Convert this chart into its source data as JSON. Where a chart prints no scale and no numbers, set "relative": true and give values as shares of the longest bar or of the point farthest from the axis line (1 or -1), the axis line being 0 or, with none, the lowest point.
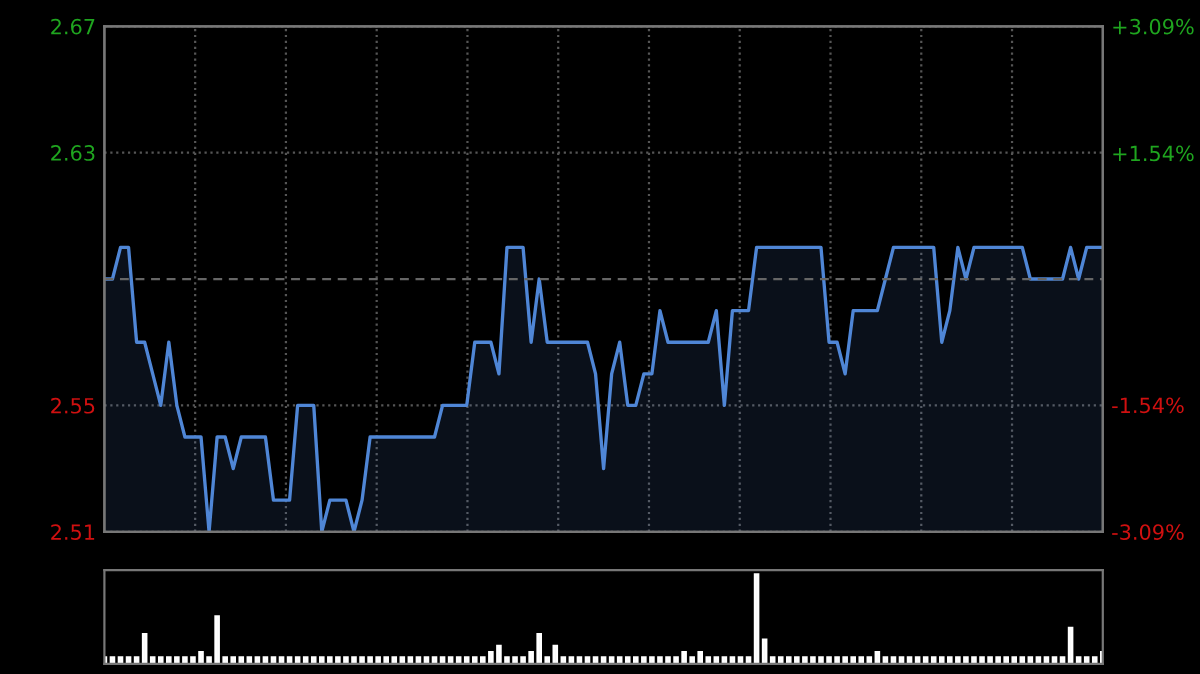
{
  "chart_data": [
    {
      "type": "area",
      "categories": [
        null,
        null,
        null,
        null,
        null,
        null,
        null,
        null,
        null,
        null,
        null,
        null,
        null,
        null,
        null,
        null,
        null,
        null,
        null,
        null,
        null,
        null,
        null,
        null,
        null,
        null,
        null,
        null,
        null,
        null,
        null,
        null,
        null,
        null,
        null,
        null,
        null,
        null,
        null,
        null,
        null,
        null,
        null,
        null,
        null,
        null,
        null,
        null,
        null,
        null,
        null,
        null,
        null,
        null,
        null,
        null,
        null,
        null,
        null,
        null,
        null,
        null,
        null,
        null,
        null,
        null,
        null,
        null,
        null,
        null,
        null,
        null,
        null,
        null,
        null,
        null,
        null,
        null,
        null,
        null,
        null,
        null,
        null,
        null,
        null,
        null,
        null,
        null,
        null,
        null,
        null,
        null,
        null,
        null,
        null,
        null,
        null,
        null,
        null,
        null,
        null,
        null,
        null,
        null,
        null,
        null,
        null,
        null,
        null,
        null,
        null,
        null,
        null,
        null,
        null,
        null,
        null,
        null,
        null,
        null,
        null,
        null,
        null,
        null,
        null
      ],
      "series": [
        {
          "color": "#4f86d6",
          "values": [
            2.59,
            2.59,
            2.6,
            2.6,
            2.57,
            2.57,
            2.56,
            2.55,
            2.57,
            2.55,
            2.54,
            2.54,
            2.54,
            2.51,
            2.54,
            2.54,
            2.53,
            2.54,
            2.54,
            2.54,
            2.54,
            2.52,
            2.52,
            2.52,
            2.55,
            2.55,
            2.55,
            2.51,
            2.52,
            2.52,
            2.52,
            2.51,
            2.52,
            2.54,
            2.54,
            2.54,
            2.54,
            2.54,
            2.54,
            2.54,
            2.54,
            2.54,
            2.55,
            2.55,
            2.55,
            2.55,
            2.57,
            2.57,
            2.57,
            2.56,
            2.6,
            2.6,
            2.6,
            2.57,
            2.59,
            2.57,
            2.57,
            2.57,
            2.57,
            2.57,
            2.57,
            2.56,
            2.53,
            2.56,
            2.57,
            2.55,
            2.55,
            2.56,
            2.56,
            2.58,
            2.57,
            2.57,
            2.57,
            2.57,
            2.57,
            2.57,
            2.58,
            2.55,
            2.58,
            2.58,
            2.58,
            2.6,
            2.6,
            2.6,
            2.6,
            2.6,
            2.6,
            2.6,
            2.6,
            2.6,
            2.57,
            2.57,
            2.56,
            2.58,
            2.58,
            2.58,
            2.58,
            2.59,
            2.6,
            2.6,
            2.6,
            2.6,
            2.6,
            2.6,
            2.57,
            2.58,
            2.6,
            2.59,
            2.6,
            2.6,
            2.6,
            2.6,
            2.6,
            2.6,
            2.6,
            2.59,
            2.59,
            2.59,
            2.59,
            2.59,
            2.6,
            2.59,
            2.6,
            2.6,
            2.6
          ]
        }
      ],
      "ylim": [
        2.51,
        2.67
      ],
      "yticks": [
        2.51,
        2.55,
        2.63,
        2.67
      ],
      "y2lim": [
        -3.09,
        3.09
      ],
      "y2ticks": [
        {
          "value": -3.09,
          "label": "-3.09%"
        },
        {
          "value": -1.54,
          "label": "-1.54%"
        },
        {
          "value": 1.54,
          "label": "+1.54%"
        },
        {
          "value": 3.09,
          "label": "+3.09%"
        }
      ],
      "ref_lines": [
        {
          "axis": "y",
          "value": 2.59,
          "color": "#666666",
          "line_style": "dashed"
        }
      ],
      "grid": true
    },
    {
      "type": "bar",
      "relative": true,
      "categories": [
        null,
        null,
        null,
        null,
        null,
        null,
        null,
        null,
        null,
        null,
        null,
        null,
        null,
        null,
        null,
        null,
        null,
        null,
        null,
        null,
        null,
        null,
        null,
        null,
        null,
        null,
        null,
        null,
        null,
        null,
        null,
        null,
        null,
        null,
        null,
        null,
        null,
        null,
        null,
        null,
        null,
        null,
        null,
        null,
        null,
        null,
        null,
        null,
        null,
        null,
        null,
        null,
        null,
        null,
        null,
        null,
        null,
        null,
        null,
        null,
        null,
        null,
        null,
        null,
        null,
        null,
        null,
        null,
        null,
        null,
        null,
        null,
        null,
        null,
        null,
        null,
        null,
        null,
        null,
        null,
        null,
        null,
        null,
        null,
        null,
        null,
        null,
        null,
        null,
        null,
        null,
        null,
        null,
        null,
        null,
        null,
        null,
        null,
        null,
        null,
        null,
        null,
        null,
        null,
        null,
        null,
        null,
        null,
        null,
        null,
        null,
        null,
        null,
        null,
        null,
        null,
        null,
        null,
        null,
        null,
        null,
        null,
        null,
        null,
        null
      ],
      "series": [
        {
          "color": "#888888",
          "values": [
            0.07,
            0.07,
            0.07,
            0.07,
            0.07,
            0.33,
            0.07,
            0.07,
            0.07,
            0.07,
            0.07,
            0.07,
            0.13,
            0.07,
            0.53,
            0.07,
            0.07,
            0.07,
            0.07,
            0.07,
            0.07,
            0.07,
            0.07,
            0.07,
            0.07,
            0.07,
            0.07,
            0.07,
            0.07,
            0.07,
            0.07,
            0.07,
            0.07,
            0.07,
            0.07,
            0.07,
            0.07,
            0.07,
            0.07,
            0.07,
            0.07,
            0.07,
            0.07,
            0.07,
            0.07,
            0.07,
            0.07,
            0.07,
            0.13,
            0.2,
            0.07,
            0.07,
            0.07,
            0.13,
            0.33,
            0.07,
            0.2,
            0.07,
            0.07,
            0.07,
            0.07,
            0.07,
            0.07,
            0.07,
            0.07,
            0.07,
            0.07,
            0.07,
            0.07,
            0.07,
            0.07,
            0.07,
            0.13,
            0.07,
            0.13,
            0.07,
            0.07,
            0.07,
            0.07,
            0.07,
            0.07,
            1.0,
            0.27,
            0.07,
            0.07,
            0.07,
            0.07,
            0.07,
            0.07,
            0.07,
            0.07,
            0.07,
            0.07,
            0.07,
            0.07,
            0.07,
            0.13,
            0.07,
            0.07,
            0.07,
            0.07,
            0.07,
            0.07,
            0.07,
            0.07,
            0.07,
            0.07,
            0.07,
            0.07,
            0.07,
            0.07,
            0.07,
            0.07,
            0.07,
            0.07,
            0.07,
            0.07,
            0.07,
            0.07,
            0.07,
            0.4,
            0.07,
            0.07,
            0.07,
            0.13
          ]
        }
      ]
    }
  ]
}
